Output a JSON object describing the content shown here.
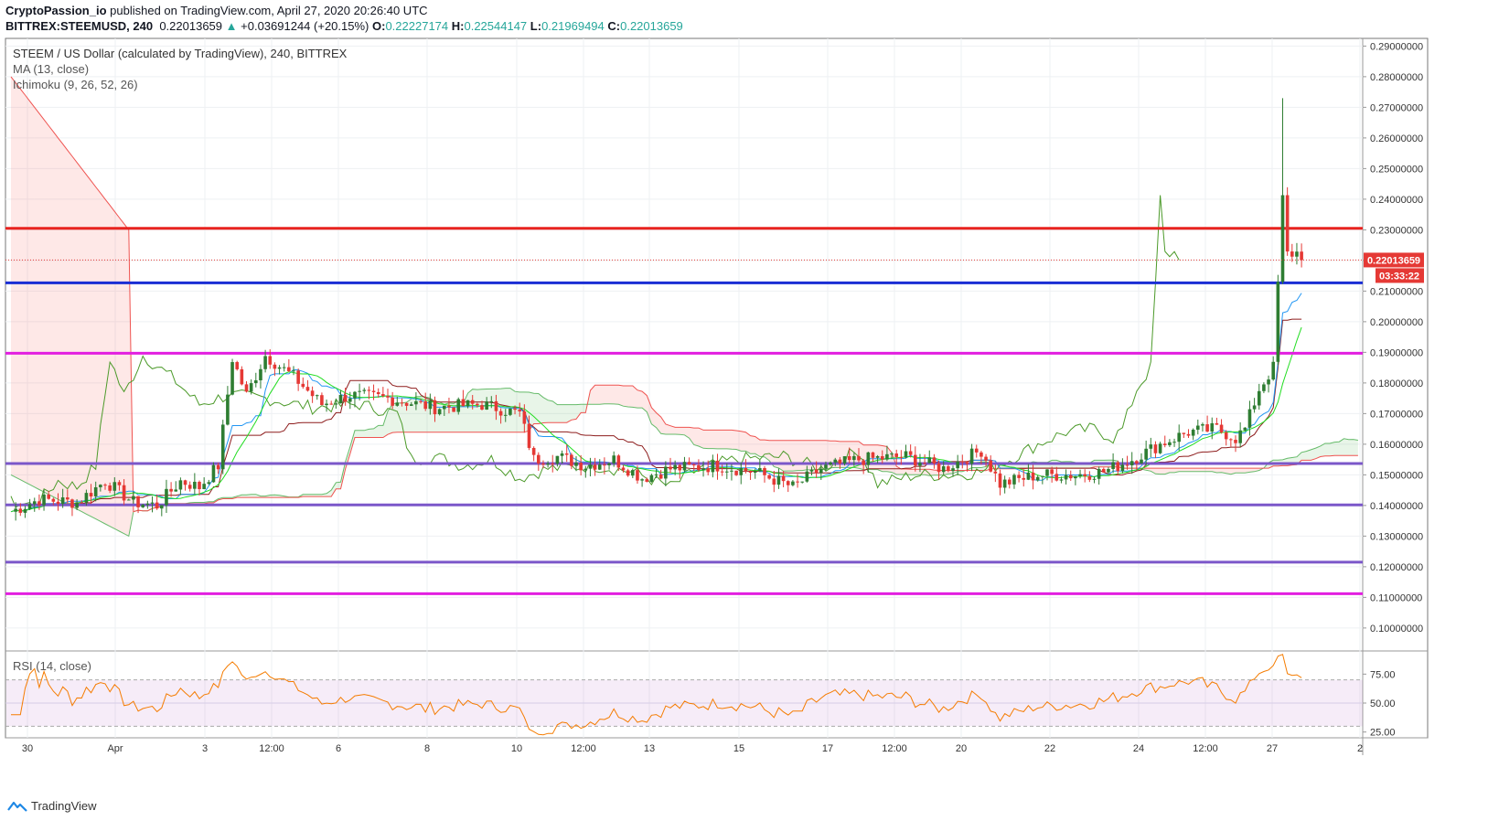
{
  "header": {
    "publisher": "CryptoPassion_io",
    "published_text": "published on TradingView.com, April 27, 2020 20:26:40 UTC",
    "symbol": "BITTREX:STEEMUSD, 240",
    "last": "0.22013659",
    "change_icon": "triangle-up-icon",
    "change": "+0.03691244 (+20.15%)",
    "o_label": "O:",
    "o": "0.22227174",
    "h_label": "H:",
    "h": "0.22544147",
    "l_label": "L:",
    "l": "0.21969494",
    "c_label": "C:",
    "c": "0.22013659"
  },
  "legend": {
    "title": "STEEM / US Dollar (calculated by TradingView), 240, BITTREX",
    "ma": "MA (13, close)",
    "ichimoku": "Ichimoku (9, 26, 52, 26)",
    "rsi": "RSI (14, close)"
  },
  "price_label": "0.22013659",
  "countdown_label": "03:33:22",
  "footer": {
    "brand": "TradingView",
    "logo_icon": "tradingview-logo-icon"
  },
  "colors": {
    "up": "#2e7d32",
    "down": "#e53935",
    "tenkan": "#2196f3",
    "kijun": "#8d1c1c",
    "lagging": "#4c9a2a",
    "ma": "#22dd22",
    "rsi": "#f57c00"
  },
  "chart_data": [
    {
      "type": "candlestick",
      "title": "STEEM / US Dollar (calculated by TradingView), 240, BITTREX",
      "ylim": [
        0.0925,
        0.2925
      ],
      "y_ticks": [
        "0.29000000",
        "0.28000000",
        "0.27000000",
        "0.26000000",
        "0.25000000",
        "0.24000000",
        "0.23000000",
        "0.22000000",
        "0.21000000",
        "0.20000000",
        "0.19000000",
        "0.18000000",
        "0.17000000",
        "0.16000000",
        "0.15000000",
        "0.14000000",
        "0.13000000",
        "0.12000000",
        "0.11000000",
        "0.10000000"
      ],
      "x_ticks": [
        "30",
        "Apr",
        "3",
        "12:00",
        "6",
        "8",
        "10",
        "12:00",
        "13",
        "15",
        "17",
        "12:00",
        "20",
        "22",
        "24",
        "12:00",
        "27",
        "2"
      ],
      "horizontal_levels": [
        {
          "value": 0.2305,
          "color": "#e8231f"
        },
        {
          "value": 0.2127,
          "color": "#1a2ed4"
        },
        {
          "value": 0.1897,
          "color": "#e21fe0"
        },
        {
          "value": 0.1537,
          "color": "#7b57c9"
        },
        {
          "value": 0.1402,
          "color": "#7b57c9"
        },
        {
          "value": 0.1215,
          "color": "#7b57c9"
        },
        {
          "value": 0.1112,
          "color": "#e21fe0"
        }
      ],
      "anchors": [
        {
          "t": 0,
          "p": 0.138
        },
        {
          "t": 6,
          "p": 0.142
        },
        {
          "t": 14,
          "p": 0.141
        },
        {
          "t": 20,
          "p": 0.148
        },
        {
          "t": 26,
          "p": 0.141
        },
        {
          "t": 31,
          "p": 0.14
        },
        {
          "t": 36,
          "p": 0.148
        },
        {
          "t": 40,
          "p": 0.146
        },
        {
          "t": 44,
          "p": 0.153
        },
        {
          "t": 47,
          "p": 0.188
        },
        {
          "t": 50,
          "p": 0.176
        },
        {
          "t": 54,
          "p": 0.189
        },
        {
          "t": 60,
          "p": 0.182
        },
        {
          "t": 66,
          "p": 0.173
        },
        {
          "t": 72,
          "p": 0.176
        },
        {
          "t": 80,
          "p": 0.175
        },
        {
          "t": 90,
          "p": 0.172
        },
        {
          "t": 100,
          "p": 0.173
        },
        {
          "t": 108,
          "p": 0.17
        },
        {
          "t": 111,
          "p": 0.155
        },
        {
          "t": 116,
          "p": 0.156
        },
        {
          "t": 122,
          "p": 0.153
        },
        {
          "t": 128,
          "p": 0.155
        },
        {
          "t": 134,
          "p": 0.149
        },
        {
          "t": 140,
          "p": 0.152
        },
        {
          "t": 150,
          "p": 0.153
        },
        {
          "t": 158,
          "p": 0.151
        },
        {
          "t": 166,
          "p": 0.146
        },
        {
          "t": 172,
          "p": 0.152
        },
        {
          "t": 180,
          "p": 0.155
        },
        {
          "t": 190,
          "p": 0.156
        },
        {
          "t": 198,
          "p": 0.152
        },
        {
          "t": 206,
          "p": 0.158
        },
        {
          "t": 210,
          "p": 0.147
        },
        {
          "t": 218,
          "p": 0.15
        },
        {
          "t": 226,
          "p": 0.15
        },
        {
          "t": 232,
          "p": 0.151
        },
        {
          "t": 238,
          "p": 0.155
        },
        {
          "t": 244,
          "p": 0.16
        },
        {
          "t": 250,
          "p": 0.164
        },
        {
          "t": 256,
          "p": 0.165
        },
        {
          "t": 260,
          "p": 0.162
        },
        {
          "t": 262,
          "p": 0.165
        },
        {
          "t": 265,
          "p": 0.178
        },
        {
          "t": 268,
          "p": 0.185
        },
        {
          "t": 270,
          "p": 0.24
        },
        {
          "t": 271,
          "p": 0.222
        },
        {
          "t": 273,
          "p": 0.2225
        },
        {
          "t": 274,
          "p": 0.2201
        }
      ],
      "rsi": {
        "name": "RSI (14, close)",
        "ylim": [
          20,
          95
        ],
        "levels": [
          70,
          30
        ],
        "ticks": [
          "75.00",
          "50.00",
          "25.00"
        ]
      }
    }
  ]
}
